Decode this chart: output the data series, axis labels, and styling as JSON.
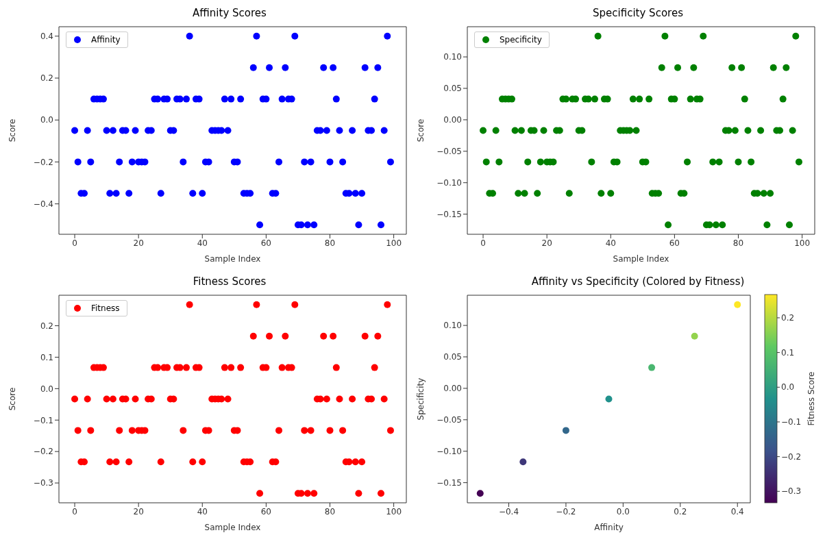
{
  "chart_data": [
    {
      "type": "scatter",
      "title": "Affinity Scores",
      "xlabel": "Sample Index",
      "ylabel": "Score",
      "legend": "top left",
      "marker": "circle",
      "xlim": [
        -4.95,
        103.95
      ],
      "xticks": [
        0,
        20,
        40,
        60,
        80,
        100
      ],
      "ylim": [
        -0.545,
        0.445
      ],
      "yticks": [
        {
          "value": -0.4,
          "label": "−0.4"
        },
        {
          "value": -0.2,
          "label": "−0.2"
        },
        {
          "value": 0,
          "label": "0.0"
        },
        {
          "value": 0.2,
          "label": "0.2"
        },
        {
          "value": 0.4,
          "label": "0.4"
        }
      ],
      "x": [
        0,
        1,
        2,
        3,
        4,
        5,
        6,
        7,
        8,
        9,
        10,
        11,
        12,
        13,
        14,
        15,
        16,
        17,
        18,
        19,
        20,
        21,
        22,
        23,
        24,
        25,
        26,
        27,
        28,
        29,
        30,
        31,
        32,
        33,
        34,
        35,
        36,
        37,
        38,
        39,
        40,
        41,
        42,
        43,
        44,
        45,
        46,
        47,
        48,
        49,
        50,
        51,
        52,
        53,
        54,
        55,
        56,
        57,
        58,
        59,
        60,
        61,
        62,
        63,
        64,
        65,
        66,
        67,
        68,
        69,
        70,
        71,
        72,
        73,
        74,
        75,
        76,
        77,
        78,
        79,
        80,
        81,
        82,
        83,
        84,
        85,
        86,
        87,
        88,
        89,
        90,
        91,
        92,
        93,
        94,
        95,
        96,
        97,
        98,
        99
      ],
      "series": [
        {
          "name": "Affinity",
          "color": "#0000ff",
          "values": [
            -0.05,
            -0.2,
            -0.35,
            -0.35,
            -0.05,
            -0.2,
            0.1,
            0.1,
            0.1,
            0.1,
            -0.05,
            -0.35,
            -0.05,
            -0.35,
            -0.2,
            -0.05,
            -0.05,
            -0.35,
            -0.2,
            -0.05,
            -0.2,
            -0.2,
            -0.2,
            -0.05,
            -0.05,
            0.1,
            0.1,
            -0.35,
            0.1,
            0.1,
            -0.05,
            -0.05,
            0.1,
            0.1,
            -0.2,
            0.1,
            0.4,
            -0.35,
            0.1,
            0.1,
            -0.35,
            -0.2,
            -0.2,
            -0.05,
            -0.05,
            -0.05,
            -0.05,
            0.1,
            -0.05,
            0.1,
            -0.2,
            -0.2,
            0.1,
            -0.35,
            -0.35,
            -0.35,
            0.25,
            0.4,
            -0.5,
            0.1,
            0.1,
            0.25,
            -0.35,
            -0.35,
            -0.2,
            0.1,
            0.25,
            0.1,
            0.1,
            0.4,
            -0.5,
            -0.5,
            -0.2,
            -0.5,
            -0.2,
            -0.5,
            -0.05,
            -0.05,
            0.25,
            -0.05,
            -0.2,
            0.25,
            0.1,
            -0.05,
            -0.2,
            -0.35,
            -0.35,
            -0.05,
            -0.35,
            -0.5,
            -0.35,
            0.25,
            -0.05,
            -0.05,
            0.1,
            0.25,
            -0.5,
            -0.05,
            0.4,
            -0.2
          ]
        }
      ]
    },
    {
      "type": "scatter",
      "title": "Specificity Scores",
      "xlabel": "Sample Index",
      "ylabel": "Score",
      "legend": "top left",
      "marker": "circle",
      "xlim": [
        -4.95,
        103.95
      ],
      "xticks": [
        0,
        20,
        40,
        60,
        80,
        100
      ],
      "ylim": [
        -0.182,
        0.148
      ],
      "yticks": [
        {
          "value": -0.15,
          "label": "−0.15"
        },
        {
          "value": -0.1,
          "label": "−0.10"
        },
        {
          "value": -0.05,
          "label": "−0.05"
        },
        {
          "value": 0,
          "label": "0.00"
        },
        {
          "value": 0.05,
          "label": "0.05"
        },
        {
          "value": 0.1,
          "label": "0.10"
        }
      ],
      "x": [
        0,
        1,
        2,
        3,
        4,
        5,
        6,
        7,
        8,
        9,
        10,
        11,
        12,
        13,
        14,
        15,
        16,
        17,
        18,
        19,
        20,
        21,
        22,
        23,
        24,
        25,
        26,
        27,
        28,
        29,
        30,
        31,
        32,
        33,
        34,
        35,
        36,
        37,
        38,
        39,
        40,
        41,
        42,
        43,
        44,
        45,
        46,
        47,
        48,
        49,
        50,
        51,
        52,
        53,
        54,
        55,
        56,
        57,
        58,
        59,
        60,
        61,
        62,
        63,
        64,
        65,
        66,
        67,
        68,
        69,
        70,
        71,
        72,
        73,
        74,
        75,
        76,
        77,
        78,
        79,
        80,
        81,
        82,
        83,
        84,
        85,
        86,
        87,
        88,
        89,
        90,
        91,
        92,
        93,
        94,
        95,
        96,
        97,
        98,
        99
      ],
      "series": [
        {
          "name": "Specificity",
          "color": "#008000",
          "values": [
            -0.017,
            -0.067,
            -0.117,
            -0.117,
            -0.017,
            -0.067,
            0.033,
            0.033,
            0.033,
            0.033,
            -0.017,
            -0.117,
            -0.017,
            -0.117,
            -0.067,
            -0.017,
            -0.017,
            -0.117,
            -0.067,
            -0.017,
            -0.067,
            -0.067,
            -0.067,
            -0.017,
            -0.017,
            0.033,
            0.033,
            -0.117,
            0.033,
            0.033,
            -0.017,
            -0.017,
            0.033,
            0.033,
            -0.067,
            0.033,
            0.133,
            -0.117,
            0.033,
            0.033,
            -0.117,
            -0.067,
            -0.067,
            -0.017,
            -0.017,
            -0.017,
            -0.017,
            0.033,
            -0.017,
            0.033,
            -0.067,
            -0.067,
            0.033,
            -0.117,
            -0.117,
            -0.117,
            0.083,
            0.133,
            -0.167,
            0.033,
            0.033,
            0.083,
            -0.117,
            -0.117,
            -0.067,
            0.033,
            0.083,
            0.033,
            0.033,
            0.133,
            -0.167,
            -0.167,
            -0.067,
            -0.167,
            -0.067,
            -0.167,
            -0.017,
            -0.017,
            0.083,
            -0.017,
            -0.067,
            0.083,
            0.033,
            -0.017,
            -0.067,
            -0.117,
            -0.117,
            -0.017,
            -0.117,
            -0.167,
            -0.117,
            0.083,
            -0.017,
            -0.017,
            0.033,
            0.083,
            -0.167,
            -0.017,
            0.133,
            -0.067
          ]
        }
      ]
    },
    {
      "type": "scatter",
      "title": "Fitness Scores",
      "xlabel": "Sample Index",
      "ylabel": "Score",
      "legend": "top left",
      "marker": "circle",
      "xlim": [
        -4.95,
        103.95
      ],
      "xticks": [
        0,
        20,
        40,
        60,
        80,
        100
      ],
      "ylim": [
        -0.363,
        0.297
      ],
      "yticks": [
        {
          "value": -0.3,
          "label": "−0.3"
        },
        {
          "value": -0.2,
          "label": "−0.2"
        },
        {
          "value": -0.1,
          "label": "−0.1"
        },
        {
          "value": 0,
          "label": "0.0"
        },
        {
          "value": 0.1,
          "label": "0.1"
        },
        {
          "value": 0.2,
          "label": "0.2"
        }
      ],
      "x": [
        0,
        1,
        2,
        3,
        4,
        5,
        6,
        7,
        8,
        9,
        10,
        11,
        12,
        13,
        14,
        15,
        16,
        17,
        18,
        19,
        20,
        21,
        22,
        23,
        24,
        25,
        26,
        27,
        28,
        29,
        30,
        31,
        32,
        33,
        34,
        35,
        36,
        37,
        38,
        39,
        40,
        41,
        42,
        43,
        44,
        45,
        46,
        47,
        48,
        49,
        50,
        51,
        52,
        53,
        54,
        55,
        56,
        57,
        58,
        59,
        60,
        61,
        62,
        63,
        64,
        65,
        66,
        67,
        68,
        69,
        70,
        71,
        72,
        73,
        74,
        75,
        76,
        77,
        78,
        79,
        80,
        81,
        82,
        83,
        84,
        85,
        86,
        87,
        88,
        89,
        90,
        91,
        92,
        93,
        94,
        95,
        96,
        97,
        98,
        99
      ],
      "series": [
        {
          "name": "Fitness",
          "color": "#ff0000",
          "values": [
            -0.033,
            -0.133,
            -0.233,
            -0.233,
            -0.033,
            -0.133,
            0.067,
            0.067,
            0.067,
            0.067,
            -0.033,
            -0.233,
            -0.033,
            -0.233,
            -0.133,
            -0.033,
            -0.033,
            -0.233,
            -0.133,
            -0.033,
            -0.133,
            -0.133,
            -0.133,
            -0.033,
            -0.033,
            0.067,
            0.067,
            -0.233,
            0.067,
            0.067,
            -0.033,
            -0.033,
            0.067,
            0.067,
            -0.133,
            0.067,
            0.267,
            -0.233,
            0.067,
            0.067,
            -0.233,
            -0.133,
            -0.133,
            -0.033,
            -0.033,
            -0.033,
            -0.033,
            0.067,
            -0.033,
            0.067,
            -0.133,
            -0.133,
            0.067,
            -0.233,
            -0.233,
            -0.233,
            0.167,
            0.267,
            -0.333,
            0.067,
            0.067,
            0.167,
            -0.233,
            -0.233,
            -0.133,
            0.067,
            0.167,
            0.067,
            0.067,
            0.267,
            -0.333,
            -0.333,
            -0.133,
            -0.333,
            -0.133,
            -0.333,
            -0.033,
            -0.033,
            0.167,
            -0.033,
            -0.133,
            0.167,
            0.067,
            -0.033,
            -0.133,
            -0.233,
            -0.233,
            -0.033,
            -0.233,
            -0.333,
            -0.233,
            0.167,
            -0.033,
            -0.033,
            0.067,
            0.167,
            -0.333,
            -0.033,
            0.267,
            -0.133
          ]
        }
      ]
    },
    {
      "type": "scatter",
      "title": "Affinity vs Specificity (Colored by Fitness)",
      "xlabel": "Affinity",
      "ylabel": "Specificity",
      "clabel": "Fitness Score",
      "marker": "circle",
      "xlim": [
        -0.545,
        0.445
      ],
      "xticks": [
        {
          "value": -0.4,
          "label": "−0.4"
        },
        {
          "value": -0.2,
          "label": "−0.2"
        },
        {
          "value": 0,
          "label": "0.0"
        },
        {
          "value": 0.2,
          "label": "0.2"
        },
        {
          "value": 0.4,
          "label": "0.4"
        }
      ],
      "ylim": [
        -0.182,
        0.148
      ],
      "yticks": [
        {
          "value": -0.15,
          "label": "−0.15"
        },
        {
          "value": -0.1,
          "label": "−0.10"
        },
        {
          "value": -0.05,
          "label": "−0.05"
        },
        {
          "value": 0,
          "label": "0.00"
        },
        {
          "value": 0.05,
          "label": "0.05"
        },
        {
          "value": 0.1,
          "label": "0.10"
        }
      ],
      "clim": [
        -0.333,
        0.267
      ],
      "cticks": [
        {
          "value": -0.3,
          "label": "−0.3"
        },
        {
          "value": -0.2,
          "label": "−0.2"
        },
        {
          "value": -0.1,
          "label": "−0.1"
        },
        {
          "value": 0,
          "label": "0.0"
        },
        {
          "value": 0.1,
          "label": "0.1"
        },
        {
          "value": 0.2,
          "label": "0.2"
        }
      ],
      "x": [
        -0.5,
        -0.35,
        -0.2,
        -0.05,
        0.1,
        0.25,
        0.4
      ],
      "values": [
        -0.167,
        -0.117,
        -0.067,
        -0.017,
        0.033,
        0.083,
        0.133
      ],
      "cvalues": [
        -0.333,
        -0.233,
        -0.133,
        -0.033,
        0.067,
        0.167,
        0.267
      ]
    }
  ]
}
